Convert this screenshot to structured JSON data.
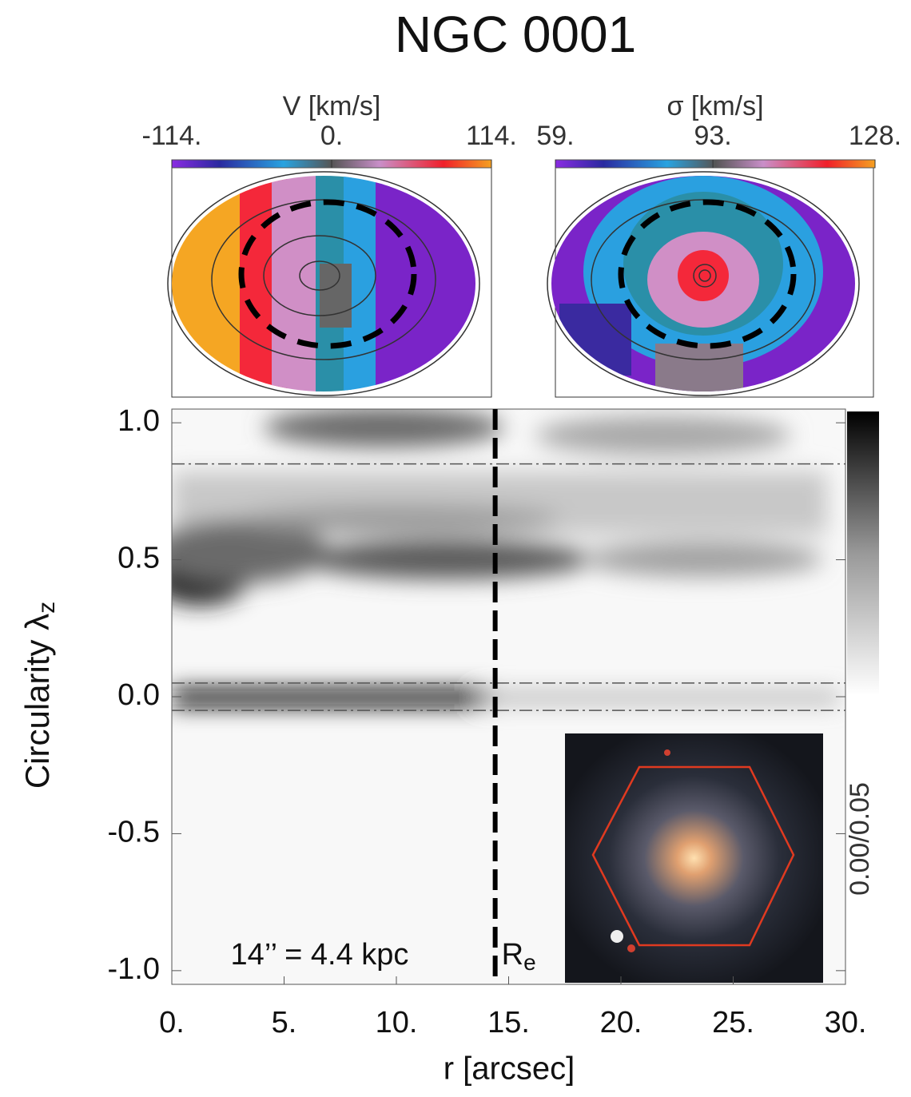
{
  "title": "NGC 0001",
  "chart_data": [
    {
      "type": "map",
      "colorbar_label": "V [km/s]",
      "clim": [
        -114,
        114
      ],
      "cticks": [
        {
          "value": -114,
          "label": "-114."
        },
        {
          "value": 0,
          "label": "0."
        },
        {
          "value": 114,
          "label": "114."
        }
      ]
    },
    {
      "type": "map",
      "colorbar_label": "σ [km/s]",
      "clim": [
        59,
        128
      ],
      "cticks": [
        {
          "value": 59,
          "label": "59."
        },
        {
          "value": 93,
          "label": "93."
        },
        {
          "value": 128,
          "label": "128."
        }
      ]
    },
    {
      "type": "heatmap",
      "x_label": "r [arcsec]",
      "y_label": "Circularity λ",
      "y_label_sub": "z",
      "xlim": [
        0,
        30
      ],
      "ylim": [
        -1.05,
        1.05
      ],
      "xticks": [
        {
          "value": 0,
          "label": "0."
        },
        {
          "value": 5,
          "label": "5."
        },
        {
          "value": 10,
          "label": "10."
        },
        {
          "value": 15,
          "label": "15."
        },
        {
          "value": 20,
          "label": "20."
        },
        {
          "value": 25,
          "label": "25."
        },
        {
          "value": 30,
          "label": "30."
        }
      ],
      "yticks": [
        {
          "value": 1,
          "label": "1.0"
        },
        0.5,
        {
          "value": 0,
          "label": "0.0"
        },
        -0.5,
        {
          "value": -1,
          "label": "-1.0"
        }
      ],
      "colorbar_label": "0.00/0.05",
      "reference_lines": [
        0.85,
        0.05,
        -0.05
      ],
      "re_x": 14.4,
      "re_label": "R",
      "re_label_sub": "e",
      "annotations": [
        "14’’ = 4.4 kpc"
      ]
    }
  ]
}
